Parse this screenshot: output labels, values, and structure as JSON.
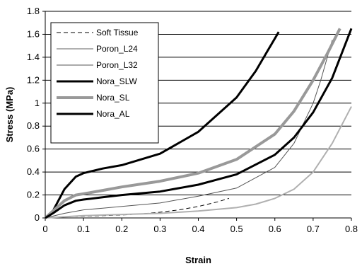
{
  "chart_data": {
    "type": "line",
    "title": "",
    "xlabel": "Strain",
    "ylabel": "Stress (MPa)",
    "xlim": [
      0,
      0.8
    ],
    "ylim": [
      0,
      1.8
    ],
    "xticks": [
      "0",
      "0.1",
      "0.2",
      "0.3",
      "0.4",
      "0.5",
      "0.6",
      "0.7",
      "0.8"
    ],
    "yticks": [
      "0",
      "0.2",
      "0.4",
      "0.6",
      "0.8",
      "1",
      "1.2",
      "1.4",
      "1.6",
      "1.8"
    ],
    "grid": "horizontal",
    "legend_position": "top-left",
    "series": [
      {
        "name": "Soft Tissue",
        "color": "#000000",
        "style": "dashed",
        "width": 1,
        "x": [
          0,
          0.05,
          0.1,
          0.15,
          0.2,
          0.25,
          0.3,
          0.35,
          0.4,
          0.45,
          0.48
        ],
        "y": [
          0,
          0.01,
          0.015,
          0.02,
          0.025,
          0.035,
          0.05,
          0.07,
          0.1,
          0.14,
          0.17
        ]
      },
      {
        "name": "Poron_L24",
        "color": "#b0b0b0",
        "style": "solid",
        "width": 2,
        "x": [
          0,
          0.05,
          0.1,
          0.2,
          0.3,
          0.4,
          0.5,
          0.55,
          0.6,
          0.65,
          0.7,
          0.75,
          0.8
        ],
        "y": [
          0,
          0.01,
          0.02,
          0.03,
          0.04,
          0.06,
          0.09,
          0.12,
          0.17,
          0.25,
          0.4,
          0.65,
          0.97
        ]
      },
      {
        "name": "Poron_L32",
        "color": "#555555",
        "style": "solid",
        "width": 1,
        "x": [
          0,
          0.05,
          0.1,
          0.15,
          0.2,
          0.3,
          0.4,
          0.5,
          0.6,
          0.65,
          0.7,
          0.72,
          0.75
        ],
        "y": [
          0,
          0.04,
          0.07,
          0.085,
          0.1,
          0.13,
          0.19,
          0.26,
          0.44,
          0.65,
          1.0,
          1.2,
          1.55
        ]
      },
      {
        "name": "Nora_SLW",
        "color": "#000000",
        "style": "solid",
        "width": 3,
        "x": [
          0,
          0.02,
          0.05,
          0.08,
          0.1,
          0.15,
          0.2,
          0.3,
          0.4,
          0.5,
          0.55,
          0.58,
          0.61
        ],
        "y": [
          0,
          0.06,
          0.25,
          0.36,
          0.39,
          0.43,
          0.46,
          0.56,
          0.75,
          1.05,
          1.28,
          1.45,
          1.62
        ]
      },
      {
        "name": "Nora_SL",
        "color": "#999999",
        "style": "solid",
        "width": 4,
        "x": [
          0,
          0.02,
          0.05,
          0.08,
          0.1,
          0.15,
          0.2,
          0.3,
          0.4,
          0.5,
          0.6,
          0.65,
          0.7,
          0.74,
          0.77
        ],
        "y": [
          0,
          0.06,
          0.15,
          0.2,
          0.21,
          0.24,
          0.27,
          0.32,
          0.39,
          0.51,
          0.73,
          0.93,
          1.2,
          1.45,
          1.65
        ]
      },
      {
        "name": "Nora_AL",
        "color": "#000000",
        "style": "solid",
        "width": 3,
        "x": [
          0,
          0.02,
          0.05,
          0.08,
          0.1,
          0.15,
          0.2,
          0.3,
          0.4,
          0.5,
          0.6,
          0.65,
          0.7,
          0.75,
          0.8
        ],
        "y": [
          0,
          0.04,
          0.11,
          0.15,
          0.16,
          0.18,
          0.2,
          0.23,
          0.29,
          0.38,
          0.55,
          0.7,
          0.92,
          1.22,
          1.65
        ]
      }
    ]
  }
}
